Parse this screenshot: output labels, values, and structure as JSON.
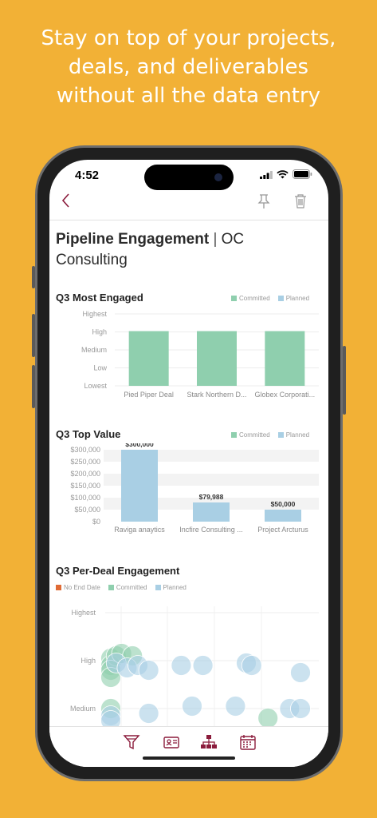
{
  "headline": {
    "line1": "Stay on top of your projects,",
    "line2": "deals, and deliverables",
    "line3": "without all the data entry"
  },
  "status_bar": {
    "time": "4:52"
  },
  "nav": {
    "back_icon": "chevron-left-icon",
    "pin_icon": "pin-icon",
    "trash_icon": "trash-icon"
  },
  "page": {
    "title_bold": "Pipeline Engagement",
    "separator": "|",
    "title_org": "OC Consulting"
  },
  "colors": {
    "accent": "#8b1c3c",
    "committed": "#8fcfae",
    "planned": "#a9cfe4",
    "no_end_date": "#e06b35"
  },
  "chart_data": [
    {
      "type": "bar",
      "title": "Q3 Most Engaged",
      "legend": [
        "Committed",
        "Planned"
      ],
      "y_ticks": [
        "Highest",
        "High",
        "Medium",
        "Low",
        "Lowest"
      ],
      "categories": [
        "Pied Piper Deal",
        "Stark Northern D...",
        "Globex Corporati..."
      ],
      "series": [
        {
          "name": "Committed",
          "values": [
            "High",
            "High",
            "High"
          ]
        }
      ]
    },
    {
      "type": "bar",
      "title": "Q3 Top Value",
      "legend": [
        "Committed",
        "Planned"
      ],
      "y_ticks": [
        "$300,000",
        "$250,000",
        "$200,000",
        "$150,000",
        "$100,000",
        "$50,000",
        "$0"
      ],
      "ylim": [
        0,
        300000
      ],
      "categories": [
        "Raviga anaytics",
        "Incfire Consulting ...",
        "Project Arcturus"
      ],
      "series": [
        {
          "name": "Planned",
          "values": [
            300000,
            79988,
            50000
          ]
        }
      ],
      "data_labels": [
        "$300,000",
        "$79,988",
        "$50,000"
      ]
    },
    {
      "type": "scatter",
      "title": "Q3 Per-Deal Engagement",
      "legend": [
        "No End Date",
        "Committed",
        "Planned"
      ],
      "y_ticks": [
        "Highest",
        "High",
        "Medium"
      ],
      "series": [
        {
          "name": "Committed",
          "points": [
            [
              1,
              4.05
            ],
            [
              1,
              3.9
            ],
            [
              1.1,
              4.1
            ],
            [
              1.2,
              4.15
            ],
            [
              1.4,
              4.1
            ],
            [
              1,
              3.8
            ],
            [
              1,
              3.65
            ],
            [
              1,
              3.0
            ],
            [
              3.9,
              2.8
            ]
          ]
        },
        {
          "name": "Planned",
          "points": [
            [
              1.1,
              3.95
            ],
            [
              1.3,
              3.85
            ],
            [
              1.5,
              3.9
            ],
            [
              1.7,
              3.8
            ],
            [
              2.3,
              3.9
            ],
            [
              2.7,
              3.9
            ],
            [
              3.5,
              3.95
            ],
            [
              3.6,
              3.9
            ],
            [
              4.5,
              3.75
            ],
            [
              1.7,
              2.9
            ],
            [
              2.5,
              3.05
            ],
            [
              3.3,
              3.05
            ],
            [
              4.3,
              3.0
            ],
            [
              4.5,
              3.0
            ],
            [
              1,
              2.85
            ],
            [
              1,
              2.75
            ]
          ]
        }
      ]
    }
  ],
  "tabbar": {
    "items": [
      "filter-icon",
      "contact-card-icon",
      "org-chart-icon",
      "calendar-icon"
    ]
  }
}
